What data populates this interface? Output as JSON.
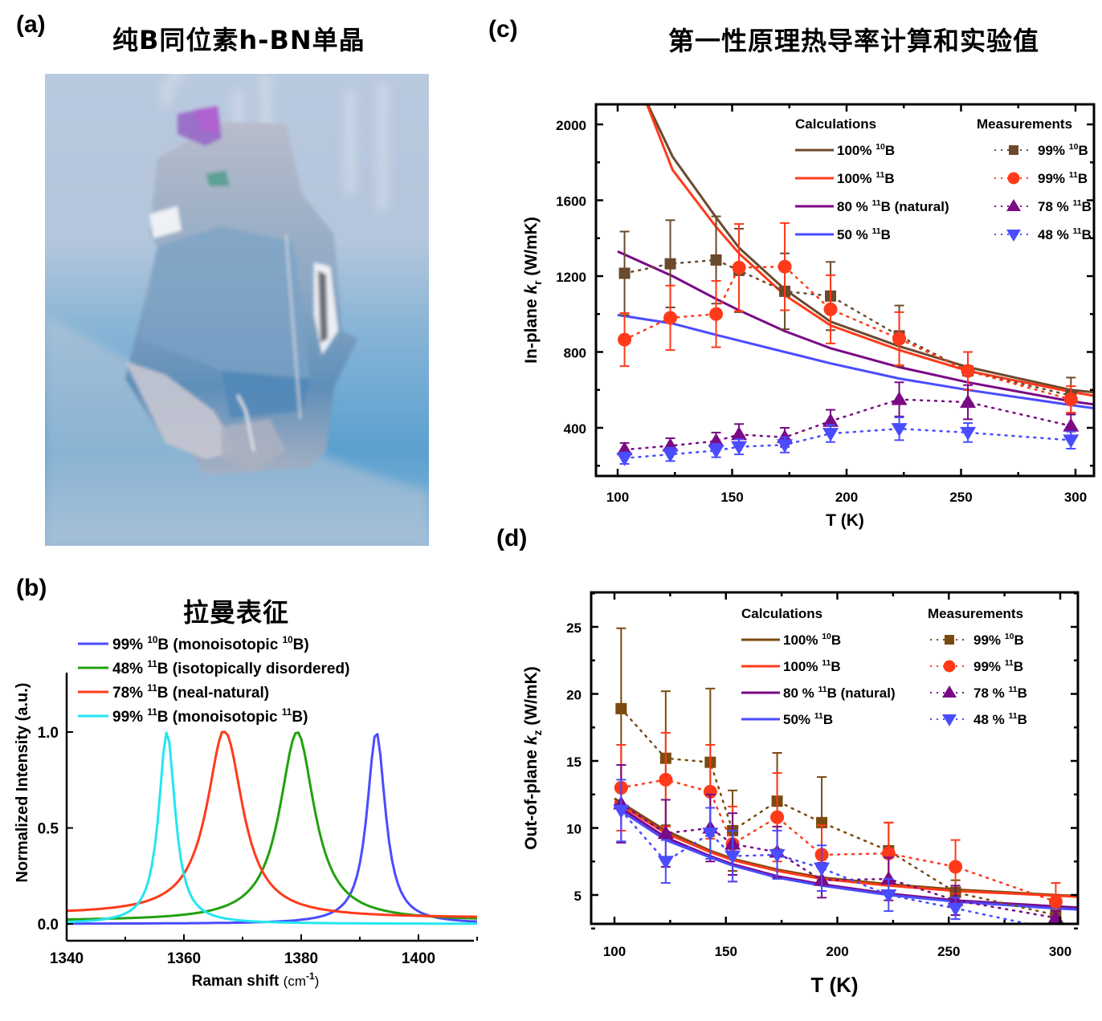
{
  "panels": {
    "a": {
      "label": "(a)",
      "title": "纯B同位素h-BN单晶",
      "image_alt": "photo of h-BN single crystal on blue background"
    },
    "b": {
      "label": "(b)",
      "title": "拉曼表征"
    },
    "c": {
      "label": "(c)",
      "title": "第一性原理热导率计算和实验值"
    },
    "d": {
      "label": "(d)"
    }
  },
  "colors": {
    "b10": "#6b4a2e",
    "b10_d": "#7a4a10",
    "b11": "#ff3a1a",
    "natural": "#7a0a86",
    "b50": "#4a4cff",
    "raman_blue": "#4a4cff",
    "raman_green": "#22a010",
    "raman_red": "#ff3a1a",
    "raman_cyan": "#22e6f0"
  },
  "chart_data": [
    {
      "id": "b",
      "type": "line",
      "title": "拉曼表征",
      "xlabel": "Raman shift (cm-1)",
      "xlabel_main": "Raman shift ",
      "xlabel_unit": "(cm",
      "xlabel_sup": "-1",
      "xlabel_close": ")",
      "ylabel": "Normalized Intensity (a.u.)",
      "xlim": [
        1340,
        1410
      ],
      "ylim": [
        -0.1,
        1.3
      ],
      "xticks": [
        1340,
        1360,
        1380,
        1400
      ],
      "xtick_labels": [
        "1340",
        "1360",
        "1380",
        "1400"
      ],
      "yticks": [
        0.0,
        0.5,
        1.0
      ],
      "ytick_labels": [
        "0.0",
        "0.5",
        "1.0"
      ],
      "legend_position": "top-left",
      "series": [
        {
          "name": "99% 10B (monoisotopic 10B)",
          "legend_parts": [
            "99% ",
            "10",
            "B (monoisotopic ",
            "10",
            "B)"
          ],
          "color_key": "raman_blue",
          "peak": 1392.8,
          "hwhm": 1.9,
          "baseline": 0.0
        },
        {
          "name": "48% 11B (isotopically disordered)",
          "legend_parts": [
            "48% ",
            "11",
            "B (isotopically disordered)",
            "",
            ""
          ],
          "color_key": "raman_green",
          "peak": 1379.3,
          "hwhm": 3.6,
          "baseline": 0.015
        },
        {
          "name": "78% 11B (neal-natural)",
          "legend_parts": [
            "78% ",
            "11",
            "B (neal-natural)",
            "",
            ""
          ],
          "color_key": "raman_red",
          "peak": 1367.0,
          "hwhm": 3.7,
          "baseline": 0.03
        },
        {
          "name": "99% 11B (monoisotopic 11B)",
          "legend_parts": [
            "99% ",
            "11",
            "B (monoisotopic ",
            "11",
            "B)"
          ],
          "color_key": "raman_cyan",
          "peak": 1357.1,
          "hwhm": 1.7,
          "baseline": 0.0
        }
      ]
    },
    {
      "id": "c",
      "type": "line",
      "title": "第一性原理热导率计算和实验值",
      "xlabel": "T (K)",
      "ylabel": "In-plane k_r (W/mK)",
      "ylabel_pre": "In-plane ",
      "ylabel_var": "k",
      "ylabel_sub": "r",
      "ylabel_post": " (W/mK)",
      "xlim": [
        92,
        310
      ],
      "ylim": [
        150,
        2100
      ],
      "xticks": [
        100,
        150,
        200,
        250,
        300
      ],
      "xtick_labels": [
        "100",
        "150",
        "200",
        "250",
        "300"
      ],
      "yticks": [
        400,
        800,
        1200,
        1600,
        2000
      ],
      "ytick_labels": [
        "400",
        "800",
        "1200",
        "1600",
        "2000"
      ],
      "legend_calc_title": "Calculations",
      "legend_meas_title": "Measurements",
      "legend_position": "top-right",
      "calculations": [
        {
          "name": "100% 10B",
          "legend_parts": [
            "100% ",
            "10",
            "B"
          ],
          "color_key": "b10",
          "x": [
            100,
            113,
            124,
            143,
            153,
            173,
            193,
            223,
            253,
            298,
            310
          ],
          "y": [
            2700,
            2110,
            1830,
            1510,
            1350,
            1130,
            960,
            830,
            720,
            600,
            585
          ]
        },
        {
          "name": "100% 11B",
          "legend_parts": [
            "100% ",
            "11",
            "B"
          ],
          "color_key": "b11",
          "x": [
            100,
            113,
            124,
            143,
            153,
            173,
            193,
            223,
            253,
            298,
            310
          ],
          "y": [
            2600,
            2100,
            1760,
            1460,
            1320,
            1100,
            940,
            810,
            700,
            590,
            565
          ]
        },
        {
          "name": "80 % 11B (natural)",
          "legend_parts": [
            "80 %  ",
            "11",
            "B (natural)"
          ],
          "color_key": "natural",
          "x": [
            100,
            124,
            143,
            153,
            173,
            193,
            223,
            253,
            298,
            310
          ],
          "y": [
            1330,
            1200,
            1080,
            1020,
            910,
            820,
            720,
            640,
            540,
            520
          ]
        },
        {
          "name": "50 % 11B",
          "legend_parts": [
            "50 %  ",
            "11",
            "B"
          ],
          "color_key": "b50",
          "x": [
            100,
            124,
            143,
            153,
            173,
            193,
            223,
            253,
            298,
            310
          ],
          "y": [
            995,
            950,
            890,
            860,
            800,
            740,
            660,
            600,
            520,
            500
          ]
        }
      ],
      "measurements": [
        {
          "name": "99% 10B",
          "legend_parts": [
            "99% ",
            "10",
            "B"
          ],
          "color_key": "b10",
          "marker": "square",
          "x": [
            103,
            123,
            143,
            153,
            173,
            193,
            223,
            253,
            298
          ],
          "y": [
            1215,
            1265,
            1285,
            1230,
            1120,
            1095,
            885,
            700,
            570
          ],
          "err": [
            220,
            230,
            230,
            220,
            200,
            180,
            160,
            100,
            95
          ]
        },
        {
          "name": "99% 11B",
          "legend_parts": [
            "99% ",
            "11",
            "B"
          ],
          "color_key": "b11",
          "marker": "circle",
          "x": [
            103,
            123,
            143,
            153,
            173,
            193,
            223,
            253,
            298
          ],
          "y": [
            865,
            980,
            1000,
            1245,
            1250,
            1025,
            870,
            700,
            550
          ],
          "err": [
            140,
            170,
            175,
            230,
            230,
            180,
            140,
            100,
            70
          ]
        },
        {
          "name": "78 % 11B",
          "legend_parts": [
            "78 % ",
            "11",
            "B"
          ],
          "color_key": "natural",
          "marker": "triangle-up",
          "x": [
            103,
            123,
            143,
            153,
            173,
            193,
            223,
            253,
            298
          ],
          "y": [
            285,
            305,
            330,
            365,
            350,
            435,
            550,
            535,
            410
          ],
          "err": [
            35,
            40,
            45,
            55,
            50,
            60,
            90,
            90,
            60
          ]
        },
        {
          "name": "48 % 11B",
          "legend_parts": [
            "48 % ",
            "11",
            "B"
          ],
          "color_key": "b50",
          "marker": "triangle-down",
          "x": [
            103,
            123,
            143,
            153,
            173,
            193,
            223,
            253,
            298
          ],
          "y": [
            240,
            260,
            280,
            300,
            310,
            370,
            395,
            375,
            335
          ],
          "err": [
            30,
            35,
            35,
            40,
            40,
            45,
            60,
            50,
            45
          ]
        }
      ]
    },
    {
      "id": "d",
      "type": "line",
      "xlabel": "T (K)",
      "ylabel": "Out-of-plane k_z (W/mK)",
      "ylabel_pre": "Out-of-plane  ",
      "ylabel_var": "k",
      "ylabel_sub": "z",
      "ylabel_post": " (W/mK)",
      "xlim": [
        90,
        310
      ],
      "ylim": [
        1.5,
        27.7
      ],
      "xticks": [
        100,
        150,
        200,
        250,
        300
      ],
      "xtick_labels": [
        "100",
        "150",
        "200",
        "250",
        "300"
      ],
      "yticks": [
        5,
        10,
        15,
        20,
        25
      ],
      "ytick_labels": [
        "5",
        "10",
        "15",
        "20",
        "25"
      ],
      "legend_calc_title": "Calculations",
      "legend_meas_title": "Measurements",
      "legend_position": "top-right",
      "calculations": [
        {
          "name": "100% 10B",
          "legend_parts": [
            "100% ",
            "10",
            "B"
          ],
          "color_key": "b10_d",
          "x": [
            100,
            123,
            143,
            153,
            173,
            193,
            223,
            253,
            298,
            310
          ],
          "y": [
            12.2,
            9.8,
            8.3,
            7.7,
            6.9,
            6.3,
            5.8,
            5.4,
            5.0,
            4.9
          ]
        },
        {
          "name": "100% 11B",
          "legend_parts": [
            "100% ",
            "11",
            "B"
          ],
          "color_key": "b11",
          "x": [
            100,
            123,
            143,
            153,
            173,
            193,
            223,
            253,
            298,
            310
          ],
          "y": [
            12.0,
            9.6,
            8.2,
            7.6,
            6.8,
            6.2,
            5.7,
            5.3,
            4.95,
            4.85
          ]
        },
        {
          "name": "80 % 11B (natural)",
          "legend_parts": [
            "80 %  ",
            "11",
            "B (natural)"
          ],
          "color_key": "natural",
          "x": [
            100,
            123,
            143,
            153,
            173,
            193,
            223,
            253,
            298,
            310
          ],
          "y": [
            11.8,
            9.3,
            7.9,
            7.3,
            6.4,
            5.8,
            5.1,
            4.6,
            4.15,
            4.05
          ]
        },
        {
          "name": "50% 11B",
          "legend_parts": [
            "50%  ",
            "11",
            "B"
          ],
          "color_key": "b50",
          "x": [
            100,
            123,
            143,
            153,
            173,
            193,
            223,
            253,
            298,
            310
          ],
          "y": [
            11.6,
            9.1,
            7.8,
            7.2,
            6.3,
            5.7,
            5.0,
            4.5,
            4.0,
            3.9
          ]
        }
      ],
      "measurements": [
        {
          "name": "99% 10B",
          "legend_parts": [
            "99%  ",
            "10",
            "B"
          ],
          "color_key": "b10_d",
          "marker": "square",
          "x": [
            103,
            123,
            143,
            153,
            173,
            193,
            223,
            253,
            298
          ],
          "y": [
            18.9,
            15.2,
            14.9,
            9.8,
            12.0,
            10.4,
            8.3,
            5.2,
            3.5
          ],
          "err": [
            6.0,
            5.0,
            5.5,
            3.0,
            3.6,
            3.4,
            2.1,
            0.9,
            0.6
          ]
        },
        {
          "name": "99% 11B",
          "legend_parts": [
            "99%  ",
            "11",
            "B"
          ],
          "color_key": "b11",
          "marker": "circle",
          "x": [
            103,
            123,
            143,
            153,
            173,
            193,
            223,
            253,
            298
          ],
          "y": [
            13.0,
            13.6,
            12.7,
            8.8,
            10.8,
            8.0,
            8.1,
            7.1,
            4.5
          ],
          "err": [
            3.2,
            3.5,
            3.5,
            2.8,
            3.3,
            2.2,
            2.3,
            2.0,
            1.4
          ]
        },
        {
          "name": "78 % 11B",
          "legend_parts": [
            "78 % ",
            "11",
            "B"
          ],
          "color_key": "natural",
          "marker": "triangle-up",
          "x": [
            103,
            123,
            143,
            153,
            173,
            193,
            223,
            253,
            298
          ],
          "y": [
            11.8,
            9.6,
            10.0,
            8.8,
            8.2,
            6.1,
            6.2,
            4.6,
            3.3
          ],
          "err": [
            2.9,
            2.5,
            2.5,
            2.3,
            1.9,
            1.3,
            1.6,
            1.1,
            0.5
          ]
        },
        {
          "name": "48 % 11B",
          "legend_parts": [
            "48 % ",
            "11",
            "B"
          ],
          "color_key": "b50",
          "marker": "triangle-down",
          "x": [
            103,
            123,
            143,
            153,
            173,
            193,
            223,
            253,
            298
          ],
          "y": [
            11.3,
            7.5,
            9.6,
            7.9,
            8.0,
            7.0,
            5.0,
            4.0,
            2.4
          ],
          "err": [
            2.3,
            1.6,
            1.9,
            1.9,
            1.8,
            1.7,
            1.2,
            0.8,
            0.4
          ]
        }
      ]
    }
  ]
}
